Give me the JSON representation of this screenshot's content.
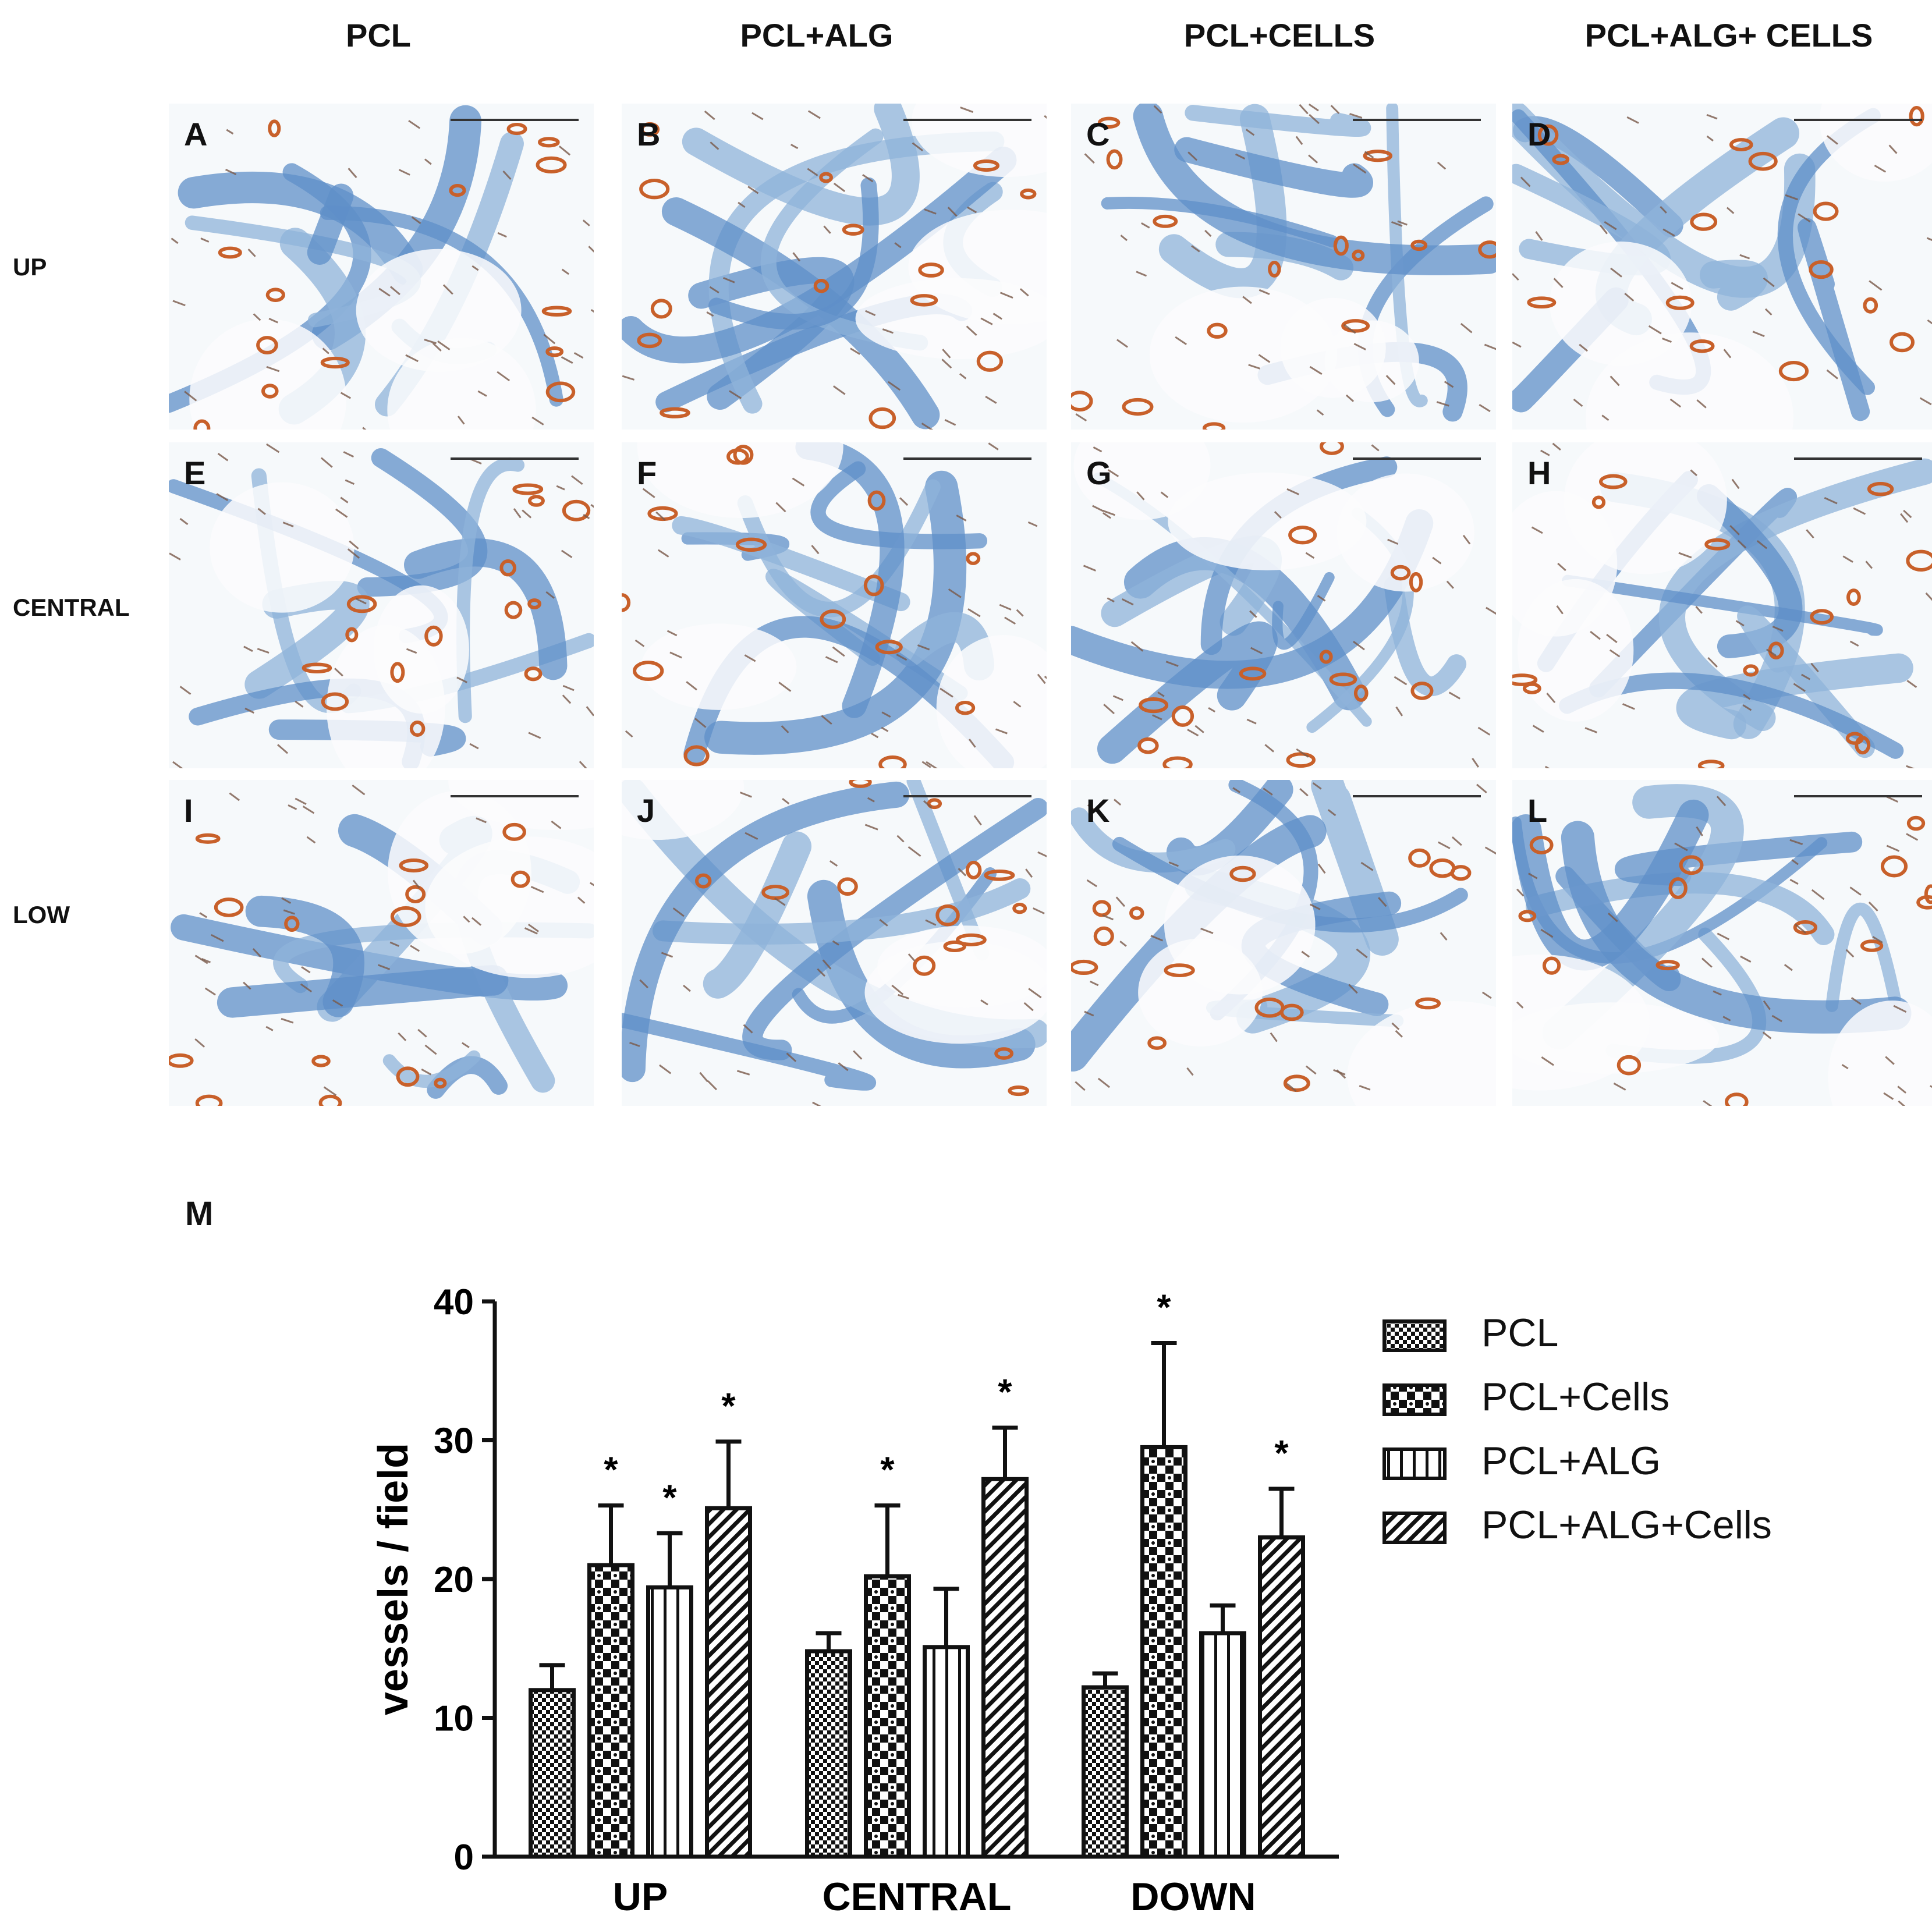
{
  "column_headers": [
    "PCL",
    "PCL+ALG",
    "PCL+CELLS",
    "PCL+ALG+ CELLS"
  ],
  "row_headers": [
    "UP",
    "CENTRAL",
    "LOW"
  ],
  "panels": [
    "A",
    "B",
    "C",
    "D",
    "E",
    "F",
    "G",
    "H",
    "I",
    "J",
    "K",
    "L"
  ],
  "figure_label": "M",
  "colors": {
    "tissue_blue": "#8fb3d9",
    "stroma_blue": "#5f8fc8",
    "stain_brown": "#c8602a",
    "background": "#f6f9fb",
    "bar_stroke": "#111111"
  },
  "chart_data": {
    "type": "bar",
    "categories": [
      "UP",
      "CENTRAL",
      "DOWN"
    ],
    "ylabel": "vessels / field",
    "xlabel": "",
    "ylim": [
      0,
      40
    ],
    "yticks": [
      0,
      10,
      20,
      30,
      40
    ],
    "series": [
      {
        "name": "PCL",
        "pattern": "checker-fine",
        "values": [
          12.0,
          14.8,
          12.2
        ],
        "errors": [
          1.8,
          1.3,
          1.0
        ],
        "significant": [
          false,
          false,
          false
        ]
      },
      {
        "name": "PCL+Cells",
        "pattern": "checker-coarse",
        "values": [
          21.0,
          20.2,
          29.5
        ],
        "errors": [
          4.3,
          5.1,
          7.5
        ],
        "significant": [
          true,
          true,
          true
        ]
      },
      {
        "name": "PCL+ALG",
        "pattern": "vertical-stripes",
        "values": [
          19.4,
          15.1,
          16.1
        ],
        "errors": [
          3.9,
          4.2,
          2.0
        ],
        "significant": [
          true,
          false,
          false
        ]
      },
      {
        "name": "PCL+ALG+Cells",
        "pattern": "diagonal-stripes",
        "values": [
          25.1,
          27.2,
          23.0
        ],
        "errors": [
          4.8,
          3.7,
          3.5
        ],
        "significant": [
          true,
          true,
          true
        ]
      }
    ],
    "significance_marker": "*",
    "legend_position": "right"
  }
}
